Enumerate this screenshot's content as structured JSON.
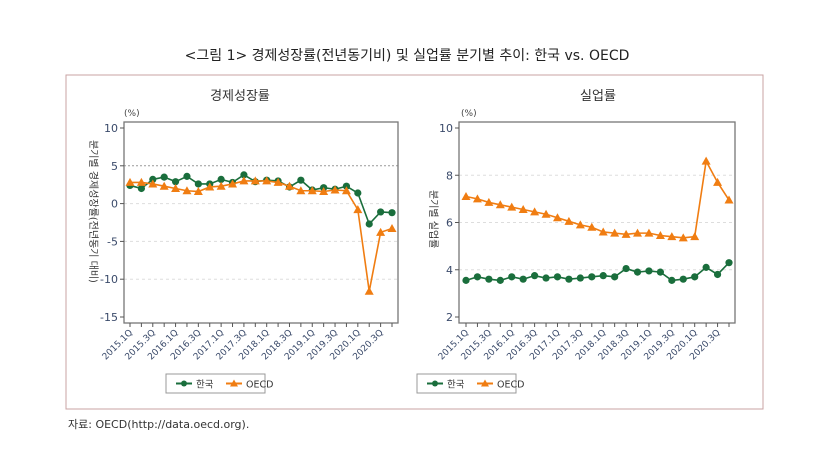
{
  "figure_title": "<그림 1> 경제성장률(전년동기비) 및 실업률 분기별 추이: 한국 vs. OECD",
  "source": "자료: OECD(http://data.oecd.org).",
  "colors": {
    "korea": "#1a6e3c",
    "oecd": "#f07d12",
    "frame": "#c9a3a3"
  },
  "chart_data": [
    {
      "type": "line",
      "title": "경제성장률",
      "unit": "(%)",
      "ylabel": "분기별 경제성장률(전년동기 대비)",
      "ylim": [
        -15,
        10
      ],
      "yticks": [
        "10",
        "5",
        "0",
        "-5",
        "-10",
        "-15"
      ],
      "reference_line": 5,
      "x": [
        "2015.1Q",
        "2015.2Q",
        "2015.3Q",
        "2015.4Q",
        "2016.1Q",
        "2016.2Q",
        "2016.3Q",
        "2016.4Q",
        "2017.1Q",
        "2017.2Q",
        "2017.3Q",
        "2017.4Q",
        "2018.1Q",
        "2018.2Q",
        "2018.3Q",
        "2018.4Q",
        "2019.1Q",
        "2019.2Q",
        "2019.3Q",
        "2019.4Q",
        "2020.1Q",
        "2020.2Q",
        "2020.3Q",
        "2020.4Q"
      ],
      "xticklabels": [
        "2015.1Q",
        "2015.3Q",
        "2016.1Q",
        "2016.3Q",
        "2017.1Q",
        "2017.3Q",
        "2018.1Q",
        "2018.3Q",
        "2019.1Q",
        "2019.3Q",
        "2020.1Q",
        "2020.3Q"
      ],
      "series": [
        {
          "name": "한국",
          "marker": "circle",
          "values": [
            2.4,
            2.0,
            3.2,
            3.5,
            2.9,
            3.6,
            2.6,
            2.6,
            3.2,
            2.8,
            3.8,
            2.9,
            3.1,
            3.0,
            2.2,
            3.1,
            1.8,
            2.1,
            1.9,
            2.3,
            1.4,
            -2.7,
            -1.1,
            -1.2
          ]
        },
        {
          "name": "OECD",
          "marker": "triangle",
          "values": [
            2.8,
            2.8,
            2.6,
            2.3,
            2.0,
            1.7,
            1.6,
            2.2,
            2.3,
            2.6,
            3.0,
            3.0,
            3.0,
            2.8,
            2.3,
            1.7,
            1.7,
            1.6,
            1.8,
            1.7,
            -0.8,
            -11.6,
            -3.8,
            -3.3
          ]
        }
      ],
      "legend": "bottom"
    },
    {
      "type": "line",
      "title": "실업률",
      "unit": "(%)",
      "ylabel": "분기별 실업률",
      "ylim": [
        2,
        10
      ],
      "yticks": [
        "10",
        "8",
        "6",
        "4",
        "2"
      ],
      "x": [
        "2015.1Q",
        "2015.2Q",
        "2015.3Q",
        "2015.4Q",
        "2016.1Q",
        "2016.2Q",
        "2016.3Q",
        "2016.4Q",
        "2017.1Q",
        "2017.2Q",
        "2017.3Q",
        "2017.4Q",
        "2018.1Q",
        "2018.2Q",
        "2018.3Q",
        "2018.4Q",
        "2019.1Q",
        "2019.2Q",
        "2019.3Q",
        "2019.4Q",
        "2020.1Q",
        "2020.2Q",
        "2020.3Q",
        "2020.4Q"
      ],
      "xticklabels": [
        "2015.1Q",
        "2015.3Q",
        "2016.1Q",
        "2016.3Q",
        "2017.1Q",
        "2017.3Q",
        "2018.1Q",
        "2018.3Q",
        "2019.1Q",
        "2019.3Q",
        "2020.1Q",
        "2020.3Q"
      ],
      "series": [
        {
          "name": "한국",
          "marker": "circle",
          "values": [
            3.55,
            3.7,
            3.6,
            3.55,
            3.7,
            3.6,
            3.75,
            3.65,
            3.7,
            3.6,
            3.65,
            3.7,
            3.75,
            3.7,
            4.05,
            3.9,
            3.95,
            3.9,
            3.55,
            3.6,
            3.7,
            4.1,
            3.8,
            4.3
          ]
        },
        {
          "name": "OECD",
          "marker": "triangle",
          "values": [
            7.1,
            7.0,
            6.85,
            6.75,
            6.65,
            6.55,
            6.45,
            6.35,
            6.2,
            6.05,
            5.9,
            5.8,
            5.6,
            5.55,
            5.5,
            5.55,
            5.55,
            5.45,
            5.4,
            5.35,
            5.4,
            8.6,
            7.7,
            6.95
          ]
        }
      ],
      "legend": "bottom"
    }
  ]
}
